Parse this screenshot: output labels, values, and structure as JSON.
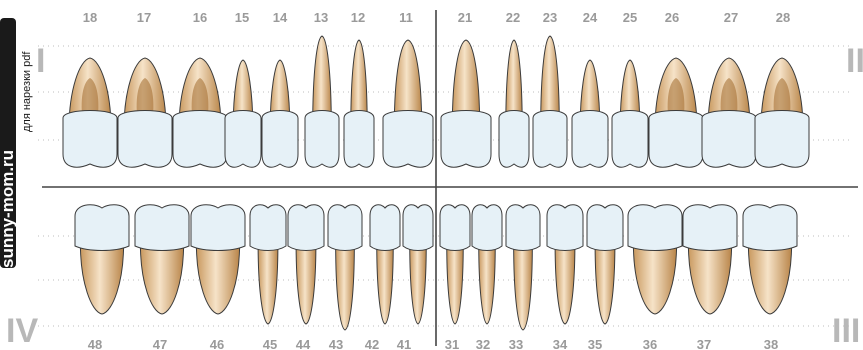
{
  "side_label": {
    "brand": "sunny-mom.ru",
    "subtitle": "для нарезки pdf"
  },
  "quadrants": {
    "upper_right": "I",
    "upper_left": "II",
    "lower_left": "III",
    "lower_right": "IV"
  },
  "upper_teeth": [
    {
      "number": "18",
      "type": "molar"
    },
    {
      "number": "17",
      "type": "molar"
    },
    {
      "number": "16",
      "type": "molar"
    },
    {
      "number": "15",
      "type": "premolar"
    },
    {
      "number": "14",
      "type": "premolar"
    },
    {
      "number": "13",
      "type": "canine"
    },
    {
      "number": "12",
      "type": "incisor"
    },
    {
      "number": "11",
      "type": "incisor"
    },
    {
      "number": "21",
      "type": "incisor"
    },
    {
      "number": "22",
      "type": "incisor"
    },
    {
      "number": "23",
      "type": "canine"
    },
    {
      "number": "24",
      "type": "premolar"
    },
    {
      "number": "25",
      "type": "premolar"
    },
    {
      "number": "26",
      "type": "molar"
    },
    {
      "number": "27",
      "type": "molar"
    },
    {
      "number": "28",
      "type": "molar"
    }
  ],
  "lower_teeth": [
    {
      "number": "48",
      "type": "molar"
    },
    {
      "number": "47",
      "type": "molar"
    },
    {
      "number": "46",
      "type": "molar"
    },
    {
      "number": "45",
      "type": "premolar"
    },
    {
      "number": "44",
      "type": "premolar"
    },
    {
      "number": "43",
      "type": "canine"
    },
    {
      "number": "42",
      "type": "incisor"
    },
    {
      "number": "41",
      "type": "incisor"
    },
    {
      "number": "31",
      "type": "incisor"
    },
    {
      "number": "32",
      "type": "incisor"
    },
    {
      "number": "33",
      "type": "canine"
    },
    {
      "number": "34",
      "type": "premolar"
    },
    {
      "number": "35",
      "type": "premolar"
    },
    {
      "number": "36",
      "type": "molar"
    },
    {
      "number": "37",
      "type": "molar"
    },
    {
      "number": "38",
      "type": "molar"
    }
  ],
  "colors": {
    "crown": "#e6f1f7",
    "root_light": "#f3dcc0",
    "root_dark": "#b07d45",
    "outline": "#3b3b3b",
    "label": "#9a9a9a"
  }
}
